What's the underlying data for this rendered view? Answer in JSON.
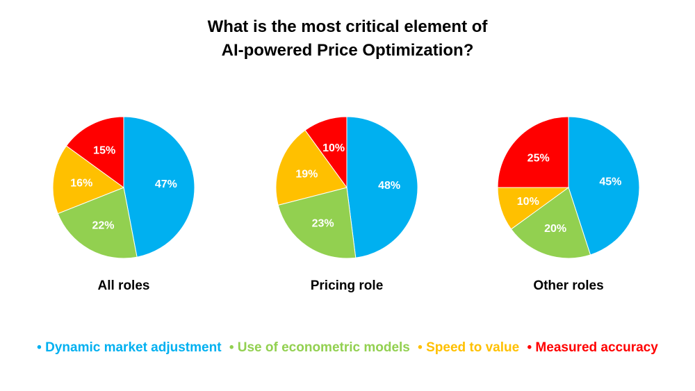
{
  "title_lines": [
    "What is the most critical element of",
    "AI-powered Price Optimization?"
  ],
  "legend": [
    {
      "label": "Dynamic market adjustment",
      "color": "#00B0F0"
    },
    {
      "label": "Use of econometric models",
      "color": "#92D050"
    },
    {
      "label": "Speed to value",
      "color": "#FFC000"
    },
    {
      "label": "Measured accuracy",
      "color": "#FF0000"
    }
  ],
  "chart_data": [
    {
      "type": "pie",
      "title": "All roles",
      "categories": [
        "Dynamic market adjustment",
        "Use of econometric models",
        "Speed to value",
        "Measured accuracy"
      ],
      "values": [
        47,
        22,
        16,
        15
      ],
      "labels": [
        "47%",
        "22%",
        "16%",
        "15%"
      ]
    },
    {
      "type": "pie",
      "title": "Pricing role",
      "categories": [
        "Dynamic market adjustment",
        "Use of econometric models",
        "Speed to value",
        "Measured accuracy"
      ],
      "values": [
        48,
        23,
        19,
        10
      ],
      "labels": [
        "48%",
        "23%",
        "19%",
        "10%"
      ]
    },
    {
      "type": "pie",
      "title": "Other roles",
      "categories": [
        "Dynamic market adjustment",
        "Use of econometric models",
        "Speed to value",
        "Measured accuracy"
      ],
      "values": [
        45,
        20,
        10,
        25
      ],
      "labels": [
        "45%",
        "20%",
        "10%",
        "25%"
      ]
    }
  ]
}
